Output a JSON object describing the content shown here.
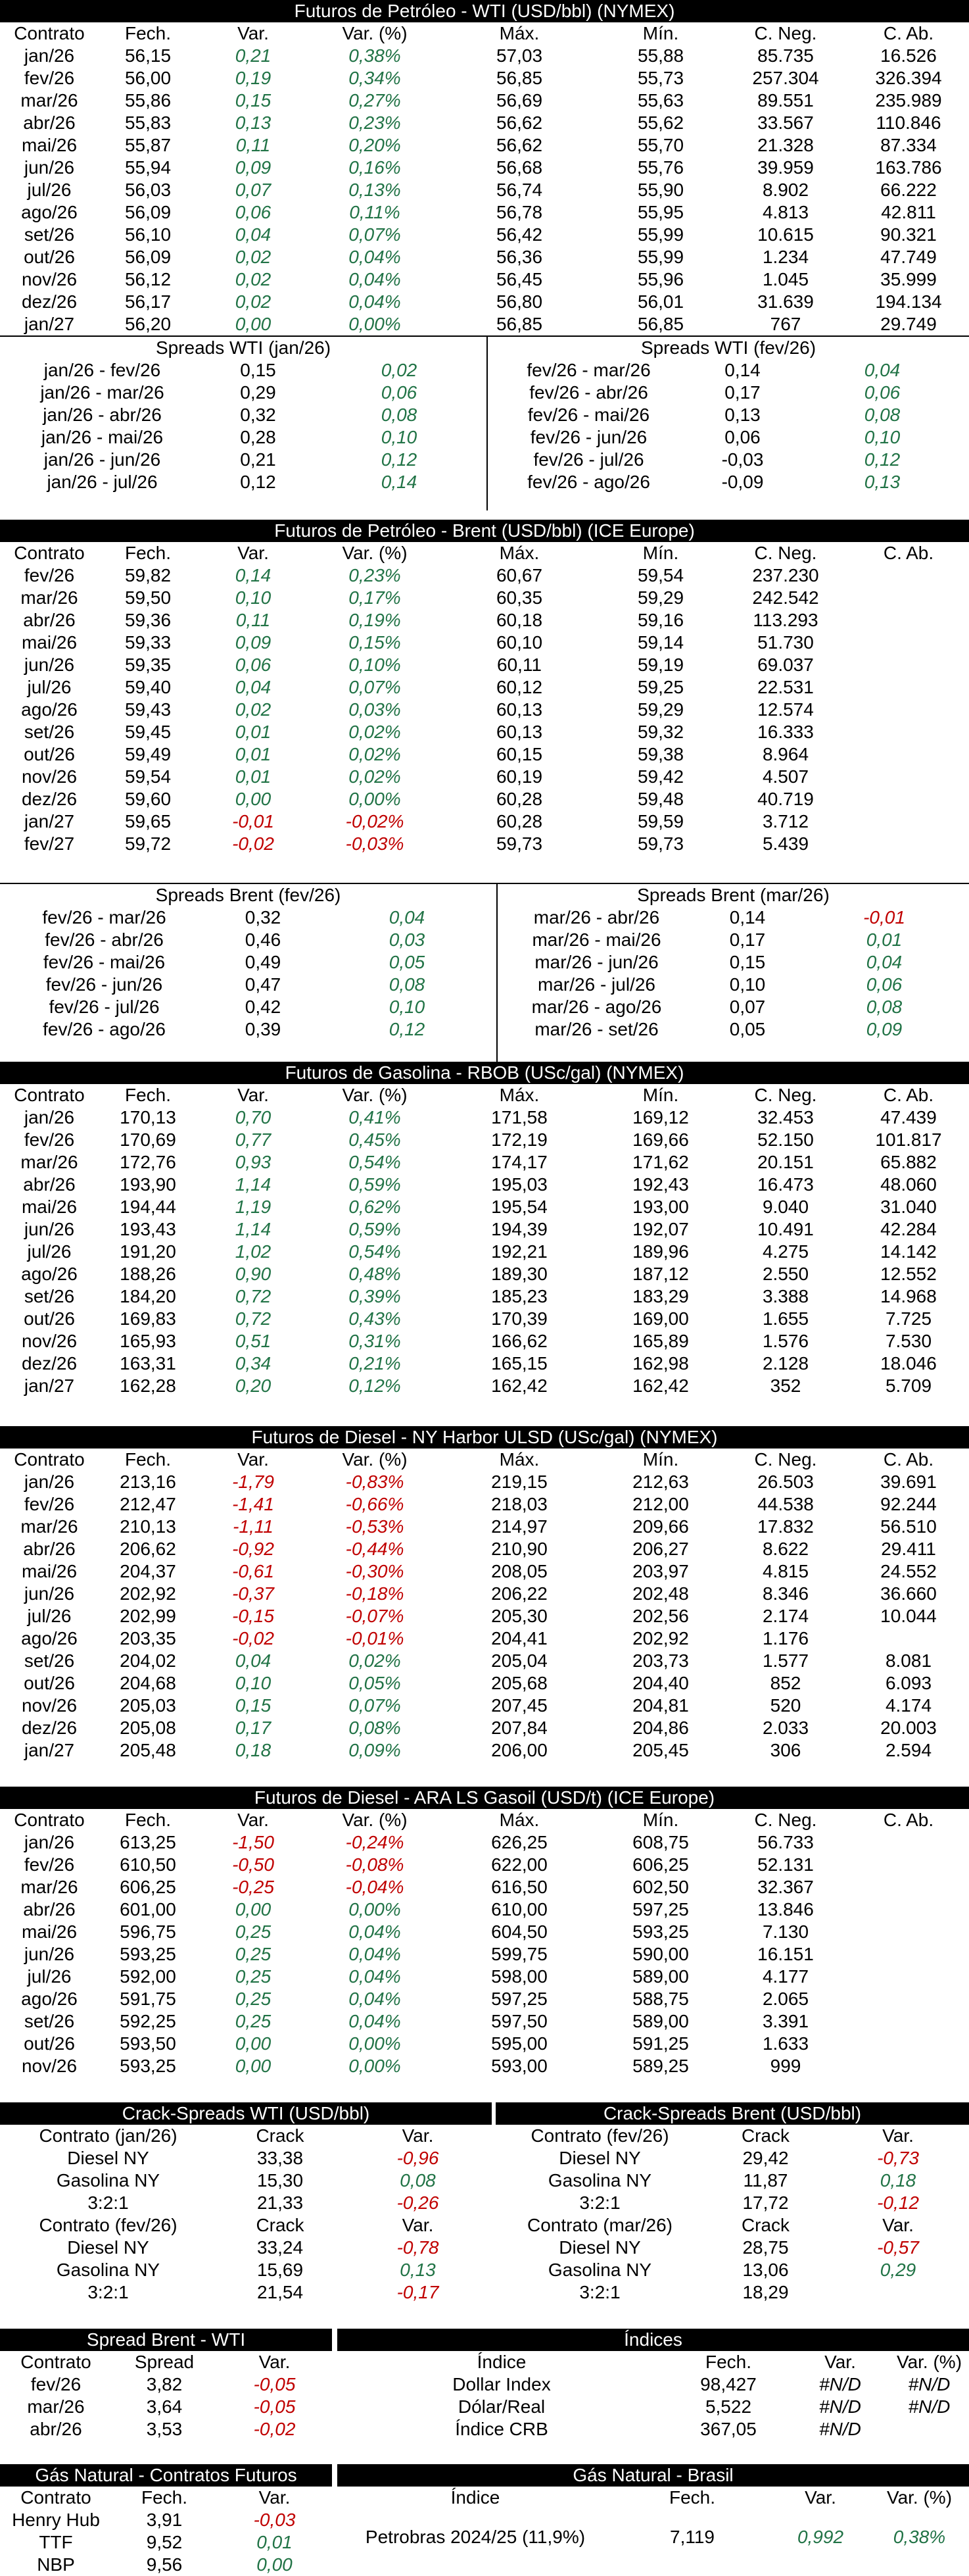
{
  "wti": {
    "title": "Futuros de Petróleo - WTI (USD/bbl) (NYMEX)",
    "cols": [
      "Contrato",
      "Fech.",
      "Var.",
      "Var. (%)",
      "Máx.",
      "Mín.",
      "C. Neg.",
      "C. Ab."
    ],
    "rows": [
      [
        "jan/26",
        "56,15",
        "0,21",
        "0,38%",
        "57,03",
        "55,88",
        "85.735",
        "16.526"
      ],
      [
        "fev/26",
        "56,00",
        "0,19",
        "0,34%",
        "56,85",
        "55,73",
        "257.304",
        "326.394"
      ],
      [
        "mar/26",
        "55,86",
        "0,15",
        "0,27%",
        "56,69",
        "55,63",
        "89.551",
        "235.989"
      ],
      [
        "abr/26",
        "55,83",
        "0,13",
        "0,23%",
        "56,62",
        "55,62",
        "33.567",
        "110.846"
      ],
      [
        "mai/26",
        "55,87",
        "0,11",
        "0,20%",
        "56,62",
        "55,70",
        "21.328",
        "87.334"
      ],
      [
        "jun/26",
        "55,94",
        "0,09",
        "0,16%",
        "56,68",
        "55,76",
        "39.959",
        "163.786"
      ],
      [
        "jul/26",
        "56,03",
        "0,07",
        "0,13%",
        "56,74",
        "55,90",
        "8.902",
        "66.222"
      ],
      [
        "ago/26",
        "56,09",
        "0,06",
        "0,11%",
        "56,78",
        "55,95",
        "4.813",
        "42.811"
      ],
      [
        "set/26",
        "56,10",
        "0,04",
        "0,07%",
        "56,42",
        "55,99",
        "10.615",
        "90.321"
      ],
      [
        "out/26",
        "56,09",
        "0,02",
        "0,04%",
        "56,36",
        "55,99",
        "1.234",
        "47.749"
      ],
      [
        "nov/26",
        "56,12",
        "0,02",
        "0,04%",
        "56,45",
        "55,96",
        "1.045",
        "35.999"
      ],
      [
        "dez/26",
        "56,17",
        "0,02",
        "0,04%",
        "56,80",
        "56,01",
        "31.639",
        "194.134"
      ],
      [
        "jan/27",
        "56,20",
        "0,00",
        "0,00%",
        "56,85",
        "56,85",
        "767",
        "29.749"
      ]
    ],
    "spreads_left": {
      "title": "Spreads WTI (jan/26)",
      "rows": [
        [
          "jan/26 - fev/26",
          "0,15",
          "0,02"
        ],
        [
          "jan/26 - mar/26",
          "0,29",
          "0,06"
        ],
        [
          "jan/26 - abr/26",
          "0,32",
          "0,08"
        ],
        [
          "jan/26 - mai/26",
          "0,28",
          "0,10"
        ],
        [
          "jan/26 - jun/26",
          "0,21",
          "0,12"
        ],
        [
          "jan/26 - jul/26",
          "0,12",
          "0,14"
        ]
      ]
    },
    "spreads_right": {
      "title": "Spreads WTI (fev/26)",
      "rows": [
        [
          "fev/26 - mar/26",
          "0,14",
          "0,04"
        ],
        [
          "fev/26 - abr/26",
          "0,17",
          "0,06"
        ],
        [
          "fev/26 - mai/26",
          "0,13",
          "0,08"
        ],
        [
          "fev/26 - jun/26",
          "0,06",
          "0,10"
        ],
        [
          "fev/26 - jul/26",
          "-0,03",
          "0,12"
        ],
        [
          "fev/26 - ago/26",
          "-0,09",
          "0,13"
        ]
      ]
    }
  },
  "brent": {
    "title": "Futuros de Petróleo - Brent (USD/bbl) (ICE Europe)",
    "cols": [
      "Contrato",
      "Fech.",
      "Var.",
      "Var. (%)",
      "Máx.",
      "Mín.",
      "C. Neg.",
      "C. Ab."
    ],
    "rows": [
      [
        "fev/26",
        "59,82",
        "0,14",
        "0,23%",
        "60,67",
        "59,54",
        "237.230",
        ""
      ],
      [
        "mar/26",
        "59,50",
        "0,10",
        "0,17%",
        "60,35",
        "59,29",
        "242.542",
        ""
      ],
      [
        "abr/26",
        "59,36",
        "0,11",
        "0,19%",
        "60,18",
        "59,16",
        "113.293",
        ""
      ],
      [
        "mai/26",
        "59,33",
        "0,09",
        "0,15%",
        "60,10",
        "59,14",
        "51.730",
        ""
      ],
      [
        "jun/26",
        "59,35",
        "0,06",
        "0,10%",
        "60,11",
        "59,19",
        "69.037",
        ""
      ],
      [
        "jul/26",
        "59,40",
        "0,04",
        "0,07%",
        "60,12",
        "59,25",
        "22.531",
        ""
      ],
      [
        "ago/26",
        "59,43",
        "0,02",
        "0,03%",
        "60,13",
        "59,29",
        "12.574",
        ""
      ],
      [
        "set/26",
        "59,45",
        "0,01",
        "0,02%",
        "60,13",
        "59,32",
        "16.333",
        ""
      ],
      [
        "out/26",
        "59,49",
        "0,01",
        "0,02%",
        "60,15",
        "59,38",
        "8.964",
        ""
      ],
      [
        "nov/26",
        "59,54",
        "0,01",
        "0,02%",
        "60,19",
        "59,42",
        "4.507",
        ""
      ],
      [
        "dez/26",
        "59,60",
        "0,00",
        "0,00%",
        "60,28",
        "59,48",
        "40.719",
        ""
      ],
      [
        "jan/27",
        "59,65",
        "-0,01",
        "-0,02%",
        "60,28",
        "59,59",
        "3.712",
        ""
      ],
      [
        "fev/27",
        "59,72",
        "-0,02",
        "-0,03%",
        "59,73",
        "59,73",
        "5.439",
        ""
      ]
    ],
    "spreads_left": {
      "title": "Spreads Brent (fev/26)",
      "rows": [
        [
          "fev/26 - mar/26",
          "0,32",
          "0,04"
        ],
        [
          "fev/26 - abr/26",
          "0,46",
          "0,03"
        ],
        [
          "fev/26 - mai/26",
          "0,49",
          "0,05"
        ],
        [
          "fev/26 - jun/26",
          "0,47",
          "0,08"
        ],
        [
          "fev/26 - jul/26",
          "0,42",
          "0,10"
        ],
        [
          "fev/26 - ago/26",
          "0,39",
          "0,12"
        ]
      ]
    },
    "spreads_right": {
      "title": "Spreads Brent (mar/26)",
      "rows": [
        [
          "mar/26 - abr/26",
          "0,14",
          "-0,01"
        ],
        [
          "mar/26 - mai/26",
          "0,17",
          "0,01"
        ],
        [
          "mar/26 - jun/26",
          "0,15",
          "0,04"
        ],
        [
          "mar/26 - jul/26",
          "0,10",
          "0,06"
        ],
        [
          "mar/26 - ago/26",
          "0,07",
          "0,08"
        ],
        [
          "mar/26 - set/26",
          "0,05",
          "0,09"
        ]
      ]
    }
  },
  "rbob": {
    "title": "Futuros de Gasolina - RBOB (USc/gal) (NYMEX)",
    "cols": [
      "Contrato",
      "Fech.",
      "Var.",
      "Var. (%)",
      "Máx.",
      "Mín.",
      "C. Neg.",
      "C. Ab."
    ],
    "rows": [
      [
        "jan/26",
        "170,13",
        "0,70",
        "0,41%",
        "171,58",
        "169,12",
        "32.453",
        "47.439"
      ],
      [
        "fev/26",
        "170,69",
        "0,77",
        "0,45%",
        "172,19",
        "169,66",
        "52.150",
        "101.817"
      ],
      [
        "mar/26",
        "172,76",
        "0,93",
        "0,54%",
        "174,17",
        "171,62",
        "20.151",
        "65.882"
      ],
      [
        "abr/26",
        "193,90",
        "1,14",
        "0,59%",
        "195,03",
        "192,43",
        "16.473",
        "48.060"
      ],
      [
        "mai/26",
        "194,44",
        "1,19",
        "0,62%",
        "195,54",
        "193,00",
        "9.040",
        "31.040"
      ],
      [
        "jun/26",
        "193,43",
        "1,14",
        "0,59%",
        "194,39",
        "192,07",
        "10.491",
        "42.284"
      ],
      [
        "jul/26",
        "191,20",
        "1,02",
        "0,54%",
        "192,21",
        "189,96",
        "4.275",
        "14.142"
      ],
      [
        "ago/26",
        "188,26",
        "0,90",
        "0,48%",
        "189,30",
        "187,12",
        "2.550",
        "12.552"
      ],
      [
        "set/26",
        "184,20",
        "0,72",
        "0,39%",
        "185,23",
        "183,29",
        "3.388",
        "14.968"
      ],
      [
        "out/26",
        "169,83",
        "0,72",
        "0,43%",
        "170,39",
        "169,00",
        "1.655",
        "7.725"
      ],
      [
        "nov/26",
        "165,93",
        "0,51",
        "0,31%",
        "166,62",
        "165,89",
        "1.576",
        "7.530"
      ],
      [
        "dez/26",
        "163,31",
        "0,34",
        "0,21%",
        "165,15",
        "162,98",
        "2.128",
        "18.046"
      ],
      [
        "jan/27",
        "162,28",
        "0,20",
        "0,12%",
        "162,42",
        "162,42",
        "352",
        "5.709"
      ]
    ]
  },
  "ulsd": {
    "title": "Futuros de Diesel - NY Harbor ULSD (USc/gal) (NYMEX)",
    "cols": [
      "Contrato",
      "Fech.",
      "Var.",
      "Var. (%)",
      "Máx.",
      "Mín.",
      "C. Neg.",
      "C. Ab."
    ],
    "rows": [
      [
        "jan/26",
        "213,16",
        "-1,79",
        "-0,83%",
        "219,15",
        "212,63",
        "26.503",
        "39.691"
      ],
      [
        "fev/26",
        "212,47",
        "-1,41",
        "-0,66%",
        "218,03",
        "212,00",
        "44.538",
        "92.244"
      ],
      [
        "mar/26",
        "210,13",
        "-1,11",
        "-0,53%",
        "214,97",
        "209,66",
        "17.832",
        "56.510"
      ],
      [
        "abr/26",
        "206,62",
        "-0,92",
        "-0,44%",
        "210,90",
        "206,27",
        "8.622",
        "29.411"
      ],
      [
        "mai/26",
        "204,37",
        "-0,61",
        "-0,30%",
        "208,05",
        "203,97",
        "4.815",
        "24.552"
      ],
      [
        "jun/26",
        "202,92",
        "-0,37",
        "-0,18%",
        "206,22",
        "202,48",
        "8.346",
        "36.660"
      ],
      [
        "jul/26",
        "202,99",
        "-0,15",
        "-0,07%",
        "205,30",
        "202,56",
        "2.174",
        "10.044"
      ],
      [
        "ago/26",
        "203,35",
        "-0,02",
        "-0,01%",
        "204,41",
        "202,92",
        "1.176",
        ""
      ],
      [
        "set/26",
        "204,02",
        "0,04",
        "0,02%",
        "205,04",
        "203,73",
        "1.577",
        "8.081"
      ],
      [
        "out/26",
        "204,68",
        "0,10",
        "0,05%",
        "205,68",
        "204,40",
        "852",
        "6.093"
      ],
      [
        "nov/26",
        "205,03",
        "0,15",
        "0,07%",
        "207,45",
        "204,81",
        "520",
        "4.174"
      ],
      [
        "dez/26",
        "205,08",
        "0,17",
        "0,08%",
        "207,84",
        "204,86",
        "2.033",
        "20.003"
      ],
      [
        "jan/27",
        "205,48",
        "0,18",
        "0,09%",
        "206,00",
        "205,45",
        "306",
        "2.594"
      ]
    ]
  },
  "gasoil": {
    "title": "Futuros de Diesel - ARA LS Gasoil (USD/t) (ICE Europe)",
    "cols": [
      "Contrato",
      "Fech.",
      "Var.",
      "Var. (%)",
      "Máx.",
      "Mín.",
      "C. Neg.",
      "C. Ab."
    ],
    "rows": [
      [
        "jan/26",
        "613,25",
        "-1,50",
        "-0,24%",
        "626,25",
        "608,75",
        "56.733",
        ""
      ],
      [
        "fev/26",
        "610,50",
        "-0,50",
        "-0,08%",
        "622,00",
        "606,25",
        "52.131",
        ""
      ],
      [
        "mar/26",
        "606,25",
        "-0,25",
        "-0,04%",
        "616,50",
        "602,50",
        "32.367",
        ""
      ],
      [
        "abr/26",
        "601,00",
        "0,00",
        "0,00%",
        "610,00",
        "597,25",
        "13.846",
        ""
      ],
      [
        "mai/26",
        "596,75",
        "0,25",
        "0,04%",
        "604,50",
        "593,25",
        "7.130",
        ""
      ],
      [
        "jun/26",
        "593,25",
        "0,25",
        "0,04%",
        "599,75",
        "590,00",
        "16.151",
        ""
      ],
      [
        "jul/26",
        "592,00",
        "0,25",
        "0,04%",
        "598,00",
        "589,00",
        "4.177",
        ""
      ],
      [
        "ago/26",
        "591,75",
        "0,25",
        "0,04%",
        "597,25",
        "588,75",
        "2.065",
        ""
      ],
      [
        "set/26",
        "592,25",
        "0,25",
        "0,04%",
        "597,50",
        "589,00",
        "3.391",
        ""
      ],
      [
        "out/26",
        "593,50",
        "0,00",
        "0,00%",
        "595,00",
        "591,25",
        "1.633",
        ""
      ],
      [
        "nov/26",
        "593,25",
        "0,00",
        "0,00%",
        "593,00",
        "589,25",
        "999",
        ""
      ]
    ]
  },
  "crack_wti": {
    "title": "Crack-Spreads WTI (USD/bbl)",
    "blocks": [
      {
        "head": [
          "Contrato (jan/26)",
          "Crack",
          "Var."
        ],
        "rows": [
          [
            "Diesel NY",
            "33,38",
            "-0,96"
          ],
          [
            "Gasolina NY",
            "15,30",
            "0,08"
          ],
          [
            "3:2:1",
            "21,33",
            "-0,26"
          ]
        ]
      },
      {
        "head": [
          "Contrato (fev/26)",
          "Crack",
          "Var."
        ],
        "rows": [
          [
            "Diesel NY",
            "33,24",
            "-0,78"
          ],
          [
            "Gasolina NY",
            "15,69",
            "0,13"
          ],
          [
            "3:2:1",
            "21,54",
            "-0,17"
          ]
        ]
      }
    ]
  },
  "crack_brent": {
    "title": "Crack-Spreads Brent (USD/bbl)",
    "blocks": [
      {
        "head": [
          "Contrato (fev/26)",
          "Crack",
          "Var."
        ],
        "rows": [
          [
            "Diesel NY",
            "29,42",
            "-0,73"
          ],
          [
            "Gasolina NY",
            "11,87",
            "0,18"
          ],
          [
            "3:2:1",
            "17,72",
            "-0,12"
          ]
        ]
      },
      {
        "head": [
          "Contrato (mar/26)",
          "Crack",
          "Var."
        ],
        "rows": [
          [
            "Diesel NY",
            "28,75",
            "-0,57"
          ],
          [
            "Gasolina NY",
            "13,06",
            "0,29"
          ],
          [
            "3:2:1",
            "18,29",
            ""
          ]
        ]
      }
    ]
  },
  "spread_bw": {
    "title": "Spread Brent - WTI",
    "head": [
      "Contrato",
      "Spread",
      "Var."
    ],
    "rows": [
      [
        "fev/26",
        "3,82",
        "-0,05"
      ],
      [
        "mar/26",
        "3,64",
        "-0,05"
      ],
      [
        "abr/26",
        "3,53",
        "-0,02"
      ]
    ]
  },
  "indices": {
    "title": "Índices",
    "head": [
      "Índice",
      "Fech.",
      "Var.",
      "Var. (%)"
    ],
    "rows": [
      [
        "Dollar Index",
        "98,427",
        "#N/D",
        "#N/D"
      ],
      [
        "Dólar/Real",
        "5,522",
        "#N/D",
        "#N/D"
      ],
      [
        "Índice CRB",
        "367,05",
        "#N/D",
        ""
      ]
    ]
  },
  "gas_fut": {
    "title": "Gás Natural - Contratos Futuros",
    "head": [
      "Contrato",
      "Fech.",
      "Var."
    ],
    "rows": [
      [
        "Henry Hub",
        "3,91",
        "-0,03"
      ],
      [
        "TTF",
        "9,52",
        "0,01"
      ],
      [
        "NBP",
        "9,56",
        "0,00"
      ]
    ]
  },
  "gas_br": {
    "title": "Gás Natural - Brasil",
    "head": [
      "Índice",
      "Fech.",
      "Var.",
      "Var. (%)"
    ],
    "rows": [
      [
        "Petrobras 2024/25 (11,9%)",
        "7,119",
        "0,992",
        "0,38%"
      ]
    ]
  }
}
